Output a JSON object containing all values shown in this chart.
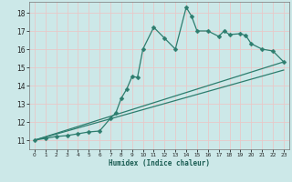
{
  "xlabel": "Humidex (Indice chaleur)",
  "background_color": "#cce8e8",
  "grid_color": "#e8c8c8",
  "line_color": "#2d7d6e",
  "xlim": [
    -0.5,
    23.5
  ],
  "ylim": [
    10.5,
    18.6
  ],
  "xticks": [
    0,
    1,
    2,
    3,
    4,
    5,
    6,
    7,
    8,
    9,
    10,
    11,
    12,
    13,
    14,
    15,
    16,
    17,
    18,
    19,
    20,
    21,
    22,
    23
  ],
  "yticks": [
    11,
    12,
    13,
    14,
    15,
    16,
    17,
    18
  ],
  "series1_x": [
    0,
    1,
    2,
    3,
    4,
    5,
    6,
    7,
    7.5,
    8,
    8.5,
    9,
    9.5,
    10,
    11,
    12,
    13,
    14,
    14.5,
    15,
    16,
    17,
    17.5,
    18,
    19,
    19.5,
    20,
    21,
    22,
    23
  ],
  "series1_y": [
    11.0,
    11.1,
    11.2,
    11.25,
    11.35,
    11.45,
    11.5,
    12.2,
    12.5,
    13.3,
    13.8,
    14.5,
    14.45,
    16.0,
    17.2,
    16.6,
    16.0,
    18.3,
    17.8,
    17.0,
    17.0,
    16.7,
    17.0,
    16.8,
    16.85,
    16.75,
    16.3,
    16.0,
    15.9,
    15.3
  ],
  "series2_x": [
    0,
    23
  ],
  "series2_y": [
    11.0,
    15.3
  ],
  "series3_x": [
    0,
    23
  ],
  "series3_y": [
    11.0,
    14.85
  ],
  "markersize": 2.5
}
